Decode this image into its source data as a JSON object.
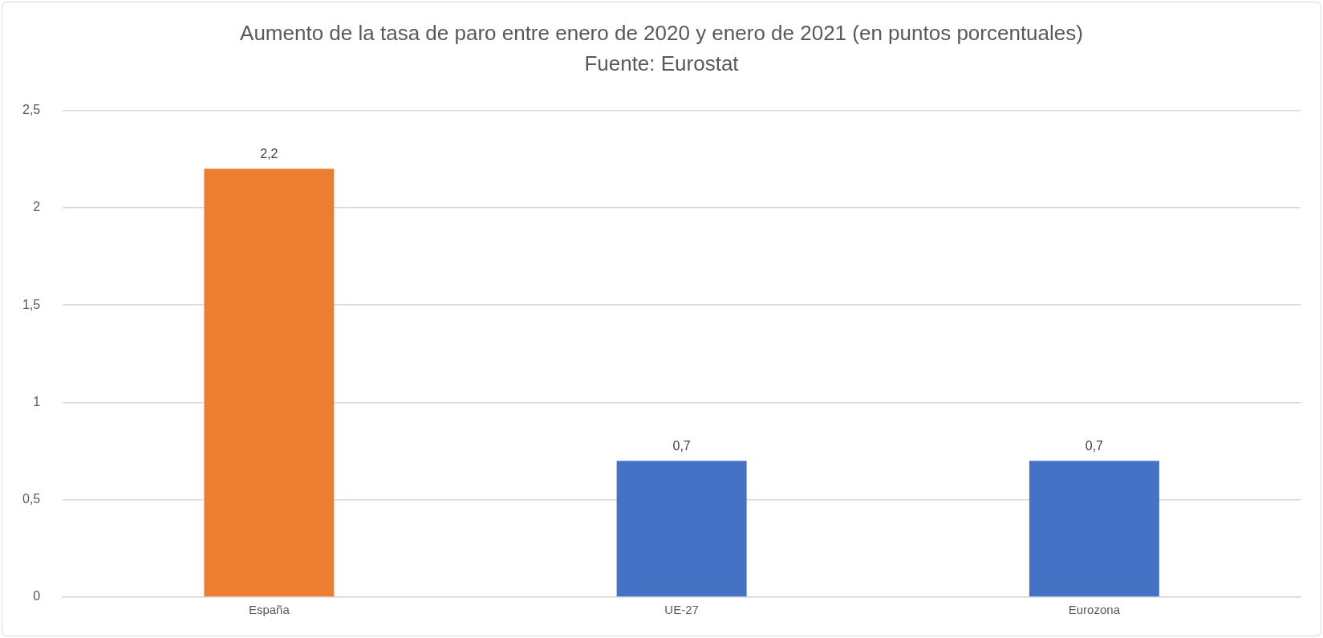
{
  "chart_data": {
    "type": "bar",
    "title": "Aumento de la tasa de paro entre enero de 2020 y enero de 2021 (en puntos porcentuales)",
    "annotations": [
      "Fuente: Eurostat"
    ],
    "categories": [
      "España",
      "UE-27",
      "Eurozona"
    ],
    "values": [
      2.2,
      0.7,
      0.7
    ],
    "colors": [
      "#ed7d31",
      "#4472c4",
      "#4472c4"
    ],
    "value_labels": [
      "2,2",
      "0,7",
      "0,7"
    ],
    "ylim": [
      0,
      2.5
    ],
    "yticks": [
      {
        "value": 0,
        "label": "0"
      },
      {
        "value": 0.5,
        "label": "0,5"
      },
      {
        "value": 1,
        "label": "1"
      },
      {
        "value": 1.5,
        "label": "1,5"
      },
      {
        "value": 2,
        "label": "2"
      },
      {
        "value": 2.5,
        "label": "2,5"
      }
    ],
    "grid": "y",
    "legend": false
  }
}
